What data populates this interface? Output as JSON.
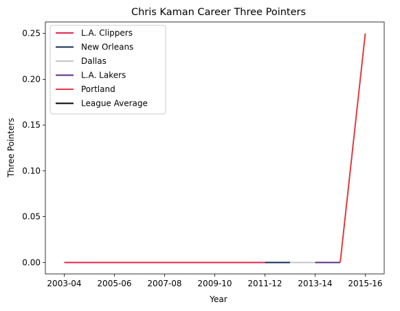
{
  "chart_data": {
    "type": "line",
    "title": "Chris Kaman Career Three Pointers",
    "xlabel": "Year",
    "ylabel": "Three Pointers",
    "categories": [
      "2003-04",
      "2004-05",
      "2005-06",
      "2006-07",
      "2007-08",
      "2008-09",
      "2009-10",
      "2010-11",
      "2011-12",
      "2012-13",
      "2013-14",
      "2014-15",
      "2015-16"
    ],
    "x_tick_labels": [
      "2003-04",
      "2005-06",
      "2007-08",
      "2009-10",
      "2011-12",
      "2013-14",
      "2015-16"
    ],
    "y_ticks": [
      "0.00",
      "0.05",
      "0.10",
      "0.15",
      "0.20",
      "0.25"
    ],
    "ylim": [
      -0.0125,
      0.2625
    ],
    "grid": false,
    "legend_position": "upper-left",
    "series": [
      {
        "name": "L.A. Clippers",
        "color": "#e8234a",
        "x": [
          "2003-04",
          "2004-05",
          "2005-06",
          "2006-07",
          "2007-08",
          "2008-09",
          "2009-10",
          "2010-11",
          "2011-12"
        ],
        "values": [
          0,
          0,
          0,
          0,
          0,
          0,
          0,
          0,
          0
        ]
      },
      {
        "name": "New Orleans",
        "color": "#0c2c56",
        "x": [
          "2011-12",
          "2012-13"
        ],
        "values": [
          0,
          0
        ]
      },
      {
        "name": "Dallas",
        "color": "#c4c4c4",
        "x": [
          "2012-13",
          "2013-14"
        ],
        "values": [
          0,
          0
        ]
      },
      {
        "name": "L.A. Lakers",
        "color": "#5a2d81",
        "x": [
          "2013-14",
          "2014-15"
        ],
        "values": [
          0,
          0
        ]
      },
      {
        "name": "Portland",
        "color": "#e03a3e",
        "x": [
          "2014-15",
          "2015-16"
        ],
        "values": [
          0,
          0.25
        ]
      },
      {
        "name": "League Average",
        "color": "#000000",
        "x": [],
        "values": []
      }
    ]
  }
}
